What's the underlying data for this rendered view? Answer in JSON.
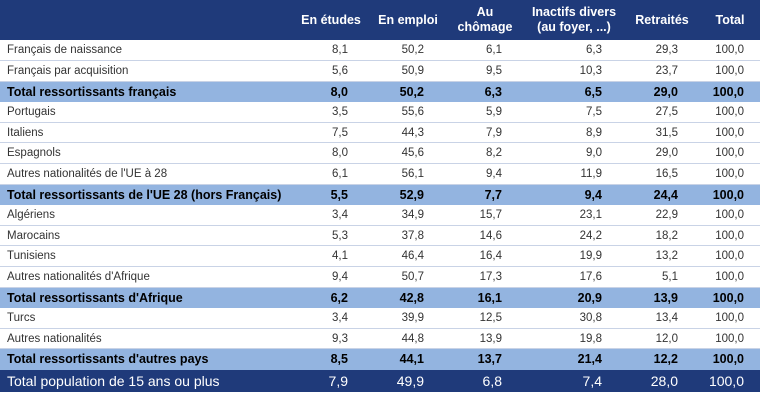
{
  "headers": [
    "",
    "En études",
    "En emploi",
    "Au chômage",
    "Inactifs divers",
    "(au foyer, ...)",
    "Retraités",
    "Total"
  ],
  "rows": [
    {
      "label": "Français de naissance",
      "type": "row",
      "values": [
        "8,1",
        "50,2",
        "6,1",
        "6,3",
        "29,3",
        "100,0"
      ]
    },
    {
      "label": "Français par acquisition",
      "type": "row",
      "values": [
        "5,6",
        "50,9",
        "9,5",
        "10,3",
        "23,7",
        "100,0"
      ]
    },
    {
      "label": "Total ressortissants français",
      "type": "subtotal",
      "values": [
        "8,0",
        "50,2",
        "6,3",
        "6,5",
        "29,0",
        "100,0"
      ]
    },
    {
      "label": "Portugais",
      "type": "row",
      "values": [
        "3,5",
        "55,6",
        "5,9",
        "7,5",
        "27,5",
        "100,0"
      ]
    },
    {
      "label": "Italiens",
      "type": "row",
      "values": [
        "7,5",
        "44,3",
        "7,9",
        "8,9",
        "31,5",
        "100,0"
      ]
    },
    {
      "label": "Espagnols",
      "type": "row",
      "values": [
        "8,0",
        "45,6",
        "8,2",
        "9,0",
        "29,0",
        "100,0"
      ]
    },
    {
      "label": "Autres nationalités de l'UE à 28",
      "type": "row",
      "values": [
        "6,1",
        "56,1",
        "9,4",
        "11,9",
        "16,5",
        "100,0"
      ]
    },
    {
      "label": "Total ressortissants de l'UE 28 (hors Français)",
      "type": "subtotal",
      "values": [
        "5,5",
        "52,9",
        "7,7",
        "9,4",
        "24,4",
        "100,0"
      ]
    },
    {
      "label": "Algériens",
      "type": "row",
      "values": [
        "3,4",
        "34,9",
        "15,7",
        "23,1",
        "22,9",
        "100,0"
      ]
    },
    {
      "label": "Marocains",
      "type": "row",
      "values": [
        "5,3",
        "37,8",
        "14,6",
        "24,2",
        "18,2",
        "100,0"
      ]
    },
    {
      "label": "Tunisiens",
      "type": "row",
      "values": [
        "4,1",
        "46,4",
        "16,4",
        "19,9",
        "13,2",
        "100,0"
      ]
    },
    {
      "label": "Autres nationalités d'Afrique",
      "type": "row",
      "values": [
        "9,4",
        "50,7",
        "17,3",
        "17,6",
        "5,1",
        "100,0"
      ]
    },
    {
      "label": "Total ressortissants d'Afrique",
      "type": "subtotal",
      "values": [
        "6,2",
        "42,8",
        "16,1",
        "20,9",
        "13,9",
        "100,0"
      ]
    },
    {
      "label": "Turcs",
      "type": "row",
      "values": [
        "3,4",
        "39,9",
        "12,5",
        "30,8",
        "13,4",
        "100,0"
      ]
    },
    {
      "label": "Autres nationalités",
      "type": "row",
      "values": [
        "9,3",
        "44,8",
        "13,9",
        "19,8",
        "12,0",
        "100,0"
      ]
    },
    {
      "label": "Total ressortissants d'autres pays",
      "type": "subtotal",
      "values": [
        "8,5",
        "44,1",
        "13,7",
        "21,4",
        "12,2",
        "100,0"
      ]
    },
    {
      "label": "Total population de 15 ans ou plus",
      "type": "grand",
      "values": [
        "7,9",
        "49,9",
        "6,8",
        "7,4",
        "28,0",
        "100,0"
      ]
    }
  ],
  "colors": {
    "header_bg": "#1f3a7a",
    "subtotal_bg": "#93b4e0",
    "grand_bg": "#1f3a7a"
  }
}
